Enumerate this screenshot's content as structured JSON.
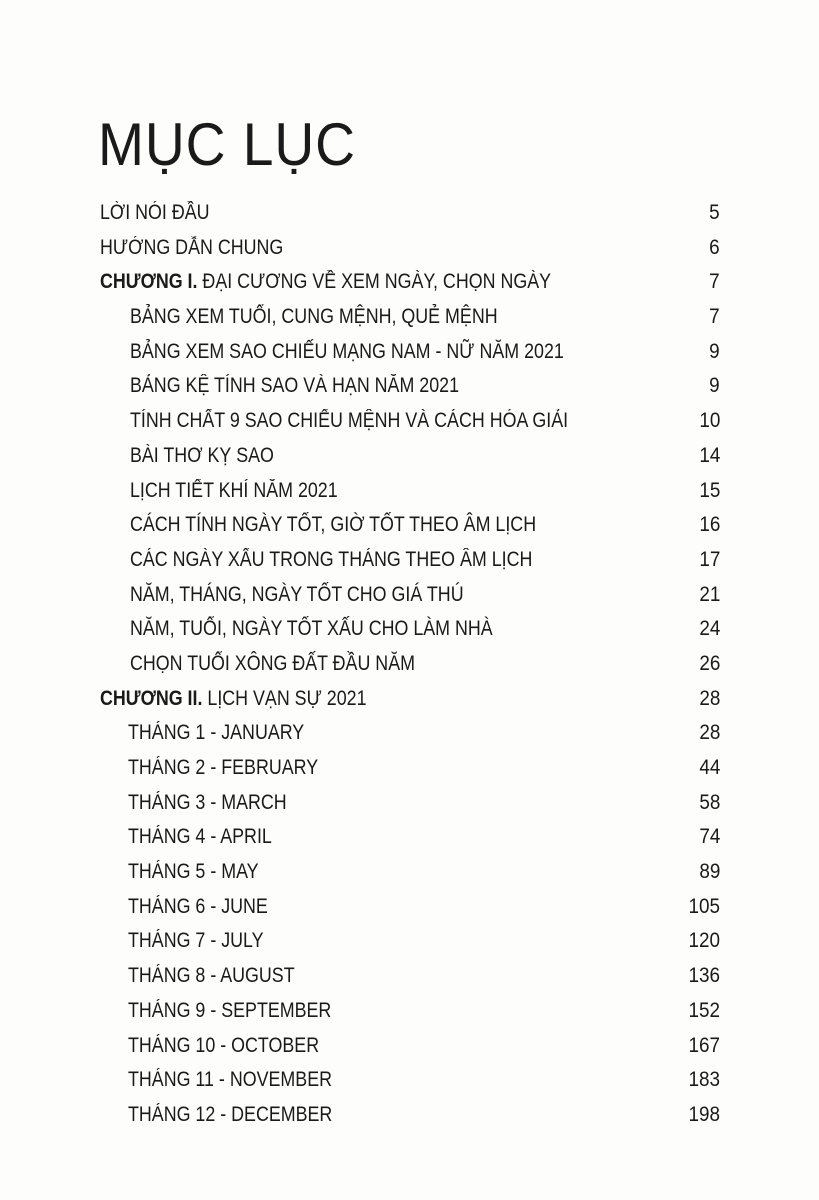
{
  "title": "MỤC LỤC",
  "entries": [
    {
      "level": 0,
      "prefix": "",
      "text": "LỜI NÓI ĐẦU",
      "page": "5"
    },
    {
      "level": 0,
      "prefix": "",
      "text": "HƯỚNG DẪN CHUNG",
      "page": "6"
    },
    {
      "level": 0,
      "prefix": "CHƯƠNG I.",
      "text": " ĐẠI CƯƠNG VỀ XEM NGÀY, CHỌN NGÀY",
      "page": "7"
    },
    {
      "level": 1,
      "prefix": "",
      "text": "BẢNG XEM TUỔI, CUNG MỆNH, QUẺ MỆNH",
      "page": "7"
    },
    {
      "level": 1,
      "prefix": "",
      "text": "BẢNG XEM SAO CHIẾU MẠNG NAM - NỮ NĂM 2021",
      "page": "9"
    },
    {
      "level": 1,
      "prefix": "",
      "text": "BẢNG KỆ TÍNH SAO VÀ HẠN NĂM 2021",
      "page": "9"
    },
    {
      "level": 1,
      "prefix": "",
      "text": "TÍNH CHẤT 9 SAO CHIẾU MỆNH VÀ CÁCH HÓA GIẢI",
      "page": "10"
    },
    {
      "level": 1,
      "prefix": "",
      "text": "BÀI THƠ KỴ SAO",
      "page": "14"
    },
    {
      "level": 1,
      "prefix": "",
      "text": "LỊCH TIẾT KHÍ NĂM 2021",
      "page": "15"
    },
    {
      "level": 1,
      "prefix": "",
      "text": "CÁCH TÍNH NGÀY TỐT, GIỜ TỐT THEO ÂM LỊCH",
      "page": "16"
    },
    {
      "level": 1,
      "prefix": "",
      "text": "CÁC NGÀY XẤU TRONG THÁNG THEO ÂM LỊCH",
      "page": "17"
    },
    {
      "level": 1,
      "prefix": "",
      "text": "NĂM, THÁNG, NGÀY TỐT CHO GIÁ THÚ",
      "page": "21"
    },
    {
      "level": 1,
      "prefix": "",
      "text": "NĂM, TUỔI, NGÀY TỐT XẤU CHO LÀM NHÀ",
      "page": "24"
    },
    {
      "level": 1,
      "prefix": "",
      "text": "CHỌN TUỔI XÔNG ĐẤT ĐẦU NĂM",
      "page": "26"
    },
    {
      "level": 0,
      "prefix": "CHƯƠNG II.",
      "text": " LỊCH VẠN SỰ 2021",
      "page": "28"
    },
    {
      "level": 2,
      "prefix": "",
      "text": "THÁNG 1 - JANUARY",
      "page": "28"
    },
    {
      "level": 2,
      "prefix": "",
      "text": "THÁNG 2 - FEBRUARY",
      "page": "44"
    },
    {
      "level": 2,
      "prefix": "",
      "text": "THÁNG 3 - MARCH",
      "page": "58"
    },
    {
      "level": 2,
      "prefix": "",
      "text": "THÁNG 4 - APRIL",
      "page": "74"
    },
    {
      "level": 2,
      "prefix": "",
      "text": "THÁNG 5 - MAY",
      "page": "89"
    },
    {
      "level": 2,
      "prefix": "",
      "text": "THÁNG 6 - JUNE",
      "page": "105"
    },
    {
      "level": 2,
      "prefix": "",
      "text": "THÁNG 7 - JULY",
      "page": "120"
    },
    {
      "level": 2,
      "prefix": "",
      "text": "THÁNG 8 - AUGUST",
      "page": "136"
    },
    {
      "level": 2,
      "prefix": "",
      "text": "THÁNG 9 - SEPTEMBER",
      "page": "152"
    },
    {
      "level": 2,
      "prefix": "",
      "text": "THÁNG 10 - OCTOBER",
      "page": "167"
    },
    {
      "level": 2,
      "prefix": "",
      "text": "THÁNG 11 - NOVEMBER",
      "page": "183"
    },
    {
      "level": 2,
      "prefix": "",
      "text": "THÁNG 12 - DECEMBER",
      "page": "198"
    }
  ]
}
